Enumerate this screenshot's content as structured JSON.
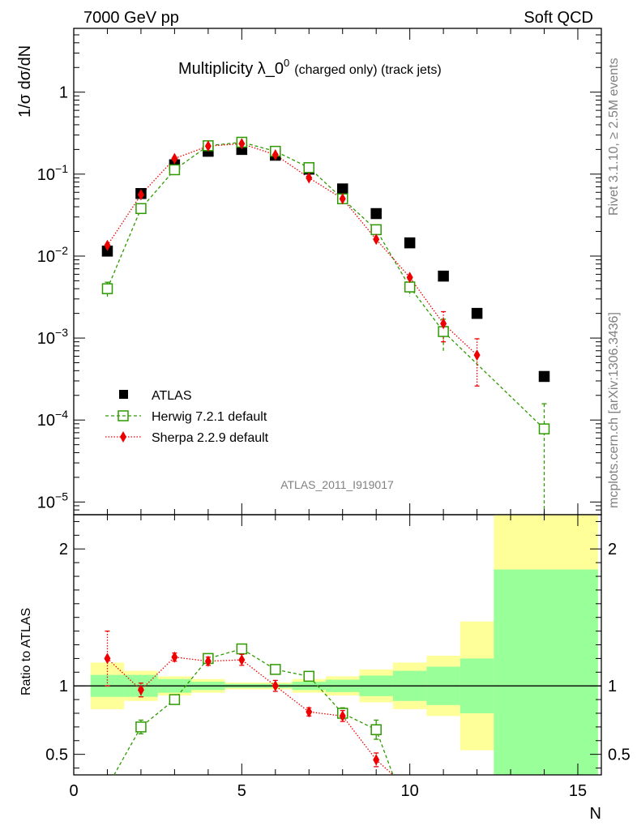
{
  "header": {
    "left": "7000 GeV pp",
    "right": "Soft QCD"
  },
  "side_labels": {
    "top": "Rivet 3.1.10, ≥ 2.5M events",
    "bottom": "mcplots.cern.ch [arXiv:1306.3436]"
  },
  "watermark": "ATLAS_2011_I919017",
  "colors": {
    "atlas": "#000000",
    "herwig": "#2e9a00",
    "sherpa": "#ee0000",
    "band_inner": "#99ff99",
    "band_outer": "#ffff99"
  },
  "chart_data": [
    {
      "type": "scatter",
      "title": "Multiplicity λ_0",
      "title_sup": "0",
      "title_suffix": "(charged only) (track jets)",
      "ylabel": "1/σ dσ/dN",
      "xlabel": "N",
      "yscale": "log",
      "xlim": [
        0,
        15.7
      ],
      "ylim": [
        7e-06,
        6
      ],
      "legend_position": "lower-left",
      "y_ticks": [
        {
          "v": 1e-05,
          "m": "10",
          "e": "−5"
        },
        {
          "v": 0.0001,
          "m": "10",
          "e": "−4"
        },
        {
          "v": 0.001,
          "m": "10",
          "e": "−3"
        },
        {
          "v": 0.01,
          "m": "10",
          "e": "−2"
        },
        {
          "v": 0.1,
          "m": "10",
          "e": "−1"
        },
        {
          "v": 1,
          "m": "1",
          "e": ""
        }
      ],
      "series": [
        {
          "name": "ATLAS",
          "x": [
            1,
            2,
            3,
            4,
            5,
            6,
            7,
            8,
            9,
            10,
            11,
            12,
            14
          ],
          "y": [
            0.0115,
            0.058,
            0.13,
            0.19,
            0.2,
            0.17,
            0.115,
            0.066,
            0.033,
            0.0145,
            0.0057,
            0.002,
            0.00034
          ]
        },
        {
          "name": "Herwig 7.2.1 default",
          "x": [
            1,
            2,
            3,
            4,
            5,
            6,
            7,
            8,
            9,
            10,
            11,
            14
          ],
          "y": [
            0.004,
            0.038,
            0.113,
            0.222,
            0.245,
            0.19,
            0.12,
            0.05,
            0.021,
            0.0042,
            0.0012,
            7.8e-05
          ],
          "err": [
            0.0008,
            0,
            0,
            0,
            0,
            0,
            0,
            0,
            0,
            0.001,
            0.0005,
            8e-05
          ]
        },
        {
          "name": "Sherpa 2.2.9 default",
          "x": [
            1,
            2,
            3,
            4,
            5,
            6,
            7,
            8,
            9,
            10,
            11,
            12
          ],
          "y": [
            0.0135,
            0.056,
            0.155,
            0.22,
            0.235,
            0.172,
            0.09,
            0.05,
            0.016,
            0.0055,
            0.0015,
            0.00062
          ],
          "err": [
            0,
            0,
            0,
            0,
            0,
            0,
            0,
            0,
            0,
            0,
            0.0006,
            0.00036
          ]
        }
      ]
    },
    {
      "type": "scatter",
      "ylabel": "Ratio to ATLAS",
      "xlabel": "N",
      "xlim": [
        0,
        15.7
      ],
      "ylim": [
        0.35,
        2.25
      ],
      "x_ticks": [
        0,
        5,
        10,
        15
      ],
      "y_ticks": [
        0.5,
        1,
        2
      ],
      "bands": [
        {
          "x0": 0.5,
          "x1": 1.5,
          "inner": 0.08,
          "outer": 0.17
        },
        {
          "x0": 1.5,
          "x1": 2.5,
          "inner": 0.08,
          "outer": 0.11
        },
        {
          "x0": 2.5,
          "x1": 3.5,
          "inner": 0.05,
          "outer": 0.07
        },
        {
          "x0": 3.5,
          "x1": 4.5,
          "inner": 0.03,
          "outer": 0.05
        },
        {
          "x0": 4.5,
          "x1": 5.5,
          "inner": 0.015,
          "outer": 0.025
        },
        {
          "x0": 5.5,
          "x1": 6.5,
          "inner": 0.015,
          "outer": 0.025
        },
        {
          "x0": 6.5,
          "x1": 7.5,
          "inner": 0.03,
          "outer": 0.05
        },
        {
          "x0": 7.5,
          "x1": 8.5,
          "inner": 0.045,
          "outer": 0.07
        },
        {
          "x0": 8.5,
          "x1": 9.5,
          "inner": 0.075,
          "outer": 0.12
        },
        {
          "x0": 9.5,
          "x1": 10.5,
          "inner": 0.11,
          "outer": 0.17
        },
        {
          "x0": 10.5,
          "x1": 11.5,
          "inner": 0.14,
          "outer": 0.22
        },
        {
          "x0": 11.5,
          "x1": 12.5,
          "inner": 0.2,
          "outer": 0.47
        },
        {
          "x0": 12.5,
          "x1": 15.6,
          "inner": 0.85,
          "outer": 2.0
        }
      ],
      "series": [
        {
          "name": "Herwig 7.2.1 default",
          "x": [
            1.2,
            2,
            3,
            4,
            5,
            6,
            7,
            8,
            9,
            9.5
          ],
          "y": [
            0.35,
            0.7,
            0.9,
            1.2,
            1.27,
            1.12,
            1.07,
            0.8,
            0.68,
            0.35
          ],
          "err": [
            0,
            0.05,
            0.02,
            0,
            0,
            0,
            0.02,
            0.04,
            0.07,
            0
          ]
        },
        {
          "name": "Sherpa 2.2.9 default",
          "x": [
            1,
            2,
            3,
            4,
            5,
            6,
            7,
            8,
            9,
            9.5
          ],
          "y": [
            1.2,
            0.97,
            1.21,
            1.18,
            1.19,
            1.0,
            0.81,
            0.78,
            0.46,
            0.35
          ],
          "err": [
            0.2,
            0.05,
            0.03,
            0.03,
            0.04,
            0.04,
            0.03,
            0.04,
            0.05,
            0
          ]
        }
      ]
    }
  ]
}
